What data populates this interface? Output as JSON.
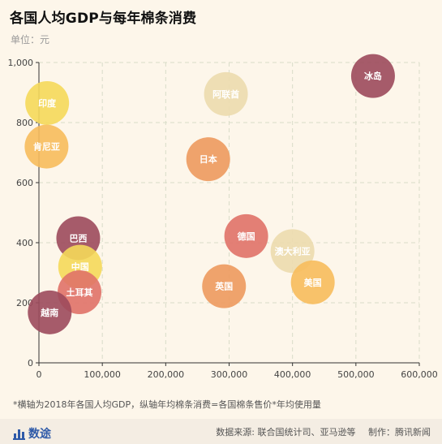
{
  "header": {
    "title": "各国人均GDP与每年棉条消费",
    "subtitle": "单位：元"
  },
  "footnote": "*横轴为2018年各国人均GDP，纵轴年均棉条消费=各国棉条售价*年均使用量",
  "footer": {
    "brand": "数途",
    "source": "数据来源: 联合国统计司、亚马逊等",
    "producer": "制作：腾讯新闻"
  },
  "chart_data": {
    "type": "scatter",
    "xlim": [
      0,
      600000
    ],
    "ylim": [
      0,
      1000
    ],
    "x_ticks": [
      0,
      100000,
      200000,
      300000,
      400000,
      500000,
      600000
    ],
    "x_tick_labels": [
      "0",
      "100,000",
      "200,000",
      "300,000",
      "400,000",
      "500,000",
      "600,000"
    ],
    "y_ticks": [
      0,
      200,
      400,
      600,
      800,
      1000
    ],
    "y_tick_labels": [
      "0",
      "200",
      "400",
      "600",
      "800",
      "1,000"
    ],
    "grid": true,
    "points": [
      {
        "label": "冰岛",
        "x": 527000,
        "y": 955,
        "color": "#9c4a5c"
      },
      {
        "label": "印度",
        "x": 13000,
        "y": 865,
        "color": "#f5d95a"
      },
      {
        "label": "阿联酋",
        "x": 295000,
        "y": 895,
        "color": "#ecdcae"
      },
      {
        "label": "肯尼亚",
        "x": 12000,
        "y": 720,
        "color": "#f7bc5c"
      },
      {
        "label": "日本",
        "x": 267000,
        "y": 678,
        "color": "#ed9a5e"
      },
      {
        "label": "巴西",
        "x": 62000,
        "y": 415,
        "color": "#9c4a5c"
      },
      {
        "label": "中国",
        "x": 65000,
        "y": 320,
        "color": "#f5d95a"
      },
      {
        "label": "德国",
        "x": 327000,
        "y": 422,
        "color": "#e07268"
      },
      {
        "label": "澳大利亚",
        "x": 400000,
        "y": 372,
        "color": "#ecdcae"
      },
      {
        "label": "土耳其",
        "x": 64000,
        "y": 235,
        "color": "#e07268"
      },
      {
        "label": "英国",
        "x": 292000,
        "y": 255,
        "color": "#ed9a5e"
      },
      {
        "label": "美国",
        "x": 432000,
        "y": 268,
        "color": "#f7bc5c"
      },
      {
        "label": "越南",
        "x": 17000,
        "y": 168,
        "color": "#9c4a5c"
      }
    ]
  }
}
